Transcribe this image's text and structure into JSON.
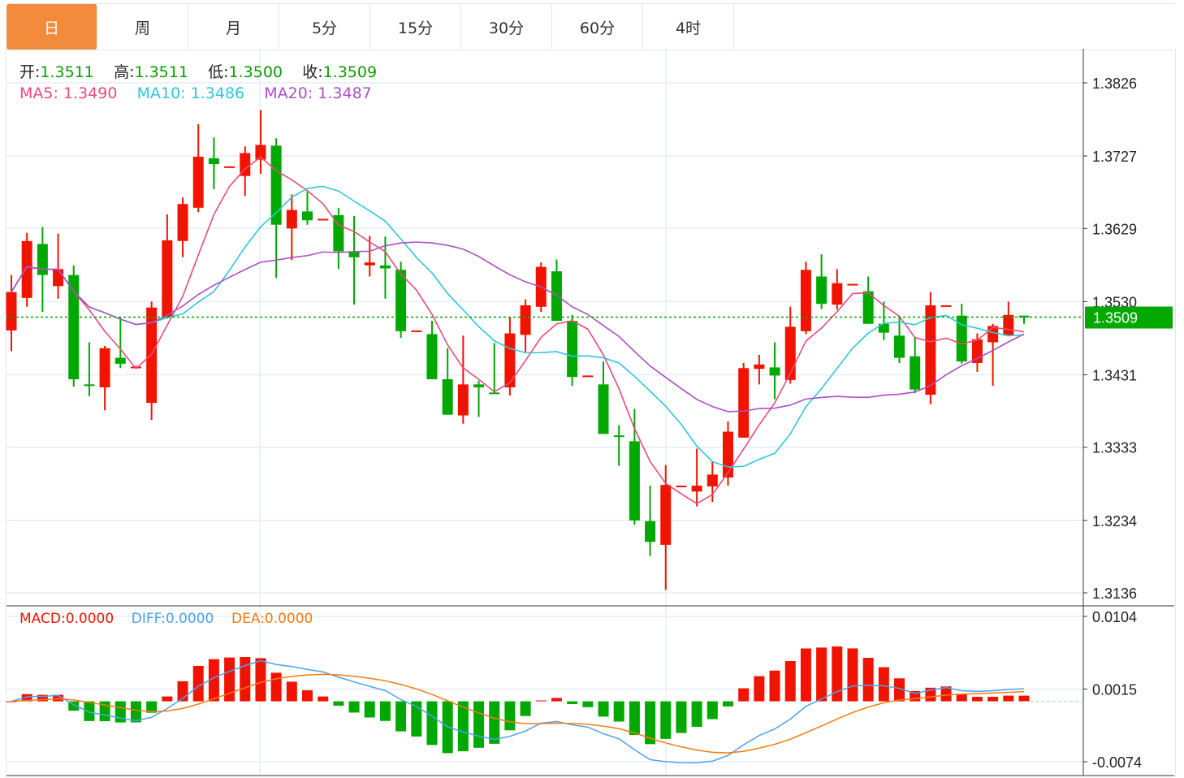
{
  "tabs": [
    "日",
    "周",
    "月",
    "5分",
    "15分",
    "30分",
    "60分",
    "4时"
  ],
  "active_tab": 0,
  "ohlc_legend": {
    "open_label": "开:",
    "open": "1.3511",
    "high_label": "高:",
    "high": "1.3511",
    "low_label": "低:",
    "low": "1.3500",
    "close_label": "收:",
    "close": "1.3509"
  },
  "ma_legend": {
    "ma5_label": "MA5:",
    "ma5": "1.3490",
    "ma10_label": "MA10:",
    "ma10": "1.3486",
    "ma20_label": "MA20:",
    "ma20": "1.3487"
  },
  "macd_legend": {
    "macd_label": "MACD:",
    "macd": "0.0000",
    "diff_label": "DIFF:",
    "diff": "0.0000",
    "dea_label": "DEA:",
    "dea": "0.0000"
  },
  "colors": {
    "up": "#f01400",
    "down": "#00a800",
    "ma5": "#ec4a7c",
    "ma10": "#2ec7dc",
    "ma20": "#ab4fc4",
    "diff": "#4aa3f0",
    "dea": "#f57c10",
    "accent": "#f28c3c",
    "last": "#00a800"
  },
  "chart_data": [
    {
      "type": "candlestick",
      "title": "",
      "price_ticks": [
        "1.3826",
        "1.3727",
        "1.3629",
        "1.3530",
        "1.3431",
        "1.3333",
        "1.3234",
        "1.3136"
      ],
      "ylim": [
        1.3136,
        1.3826
      ],
      "last_price": "1.3509",
      "grid": true,
      "candles_ohlc": [
        [
          1.3491,
          1.3566,
          1.3463,
          1.3543
        ],
        [
          1.3535,
          1.3623,
          1.3523,
          1.3612
        ],
        [
          1.3608,
          1.3631,
          1.3516,
          1.3566
        ],
        [
          1.3551,
          1.3622,
          1.3534,
          1.3574
        ],
        [
          1.3566,
          1.3579,
          1.3415,
          1.3425
        ],
        [
          1.3418,
          1.3475,
          1.3402,
          1.3417
        ],
        [
          1.3414,
          1.347,
          1.3383,
          1.3467
        ],
        [
          1.3454,
          1.3509,
          1.344,
          1.3446
        ],
        [
          1.3441,
          1.3443,
          1.344,
          1.3442
        ],
        [
          1.3393,
          1.353,
          1.337,
          1.3522
        ],
        [
          1.3509,
          1.3648,
          1.3507,
          1.3613
        ],
        [
          1.3612,
          1.3671,
          1.359,
          1.3662
        ],
        [
          1.3657,
          1.377,
          1.3651,
          1.3726
        ],
        [
          1.3724,
          1.3752,
          1.3682,
          1.3716
        ],
        [
          1.3712,
          1.3713,
          1.3712,
          1.3713
        ],
        [
          1.37,
          1.374,
          1.3673,
          1.3731
        ],
        [
          1.3722,
          1.3789,
          1.3703,
          1.3742
        ],
        [
          1.3741,
          1.3751,
          1.3562,
          1.3634
        ],
        [
          1.3629,
          1.3675,
          1.3586,
          1.3654
        ],
        [
          1.3652,
          1.3679,
          1.3634,
          1.364
        ],
        [
          1.3641,
          1.3642,
          1.3641,
          1.3642
        ],
        [
          1.3647,
          1.3657,
          1.3574,
          1.3598
        ],
        [
          1.3598,
          1.3646,
          1.3526,
          1.359
        ],
        [
          1.3579,
          1.3619,
          1.3564,
          1.3583
        ],
        [
          1.3579,
          1.3618,
          1.3534,
          1.3575
        ],
        [
          1.3573,
          1.3584,
          1.3481,
          1.349
        ],
        [
          1.349,
          1.3491,
          1.349,
          1.3491
        ],
        [
          1.3486,
          1.3504,
          1.3425,
          1.3425
        ],
        [
          1.3425,
          1.3467,
          1.3377,
          1.3377
        ],
        [
          1.3376,
          1.3484,
          1.3365,
          1.3418
        ],
        [
          1.3418,
          1.3423,
          1.3374,
          1.3414
        ],
        [
          1.3407,
          1.3474,
          1.3406,
          1.3406
        ],
        [
          1.3414,
          1.3509,
          1.3403,
          1.3487
        ],
        [
          1.3485,
          1.3533,
          1.3462,
          1.3525
        ],
        [
          1.3523,
          1.3583,
          1.3516,
          1.3577
        ],
        [
          1.3571,
          1.3587,
          1.3504,
          1.3504
        ],
        [
          1.3504,
          1.3512,
          1.3416,
          1.3428
        ],
        [
          1.3428,
          1.343,
          1.3428,
          1.343
        ],
        [
          1.3418,
          1.3449,
          1.3351,
          1.3351
        ],
        [
          1.3349,
          1.3363,
          1.3308,
          1.3348
        ],
        [
          1.3341,
          1.3385,
          1.3228,
          1.3234
        ],
        [
          1.3233,
          1.3281,
          1.3186,
          1.3205
        ],
        [
          1.3201,
          1.3309,
          1.314,
          1.3282
        ],
        [
          1.328,
          1.3281,
          1.328,
          1.3281
        ],
        [
          1.3273,
          1.3331,
          1.3253,
          1.3281
        ],
        [
          1.328,
          1.3314,
          1.3259,
          1.3296
        ],
        [
          1.3292,
          1.3368,
          1.3281,
          1.3354
        ],
        [
          1.3346,
          1.3447,
          1.3346,
          1.344
        ],
        [
          1.3439,
          1.3458,
          1.3418,
          1.3445
        ],
        [
          1.3441,
          1.3475,
          1.3398,
          1.343
        ],
        [
          1.3424,
          1.3523,
          1.3419,
          1.3496
        ],
        [
          1.349,
          1.3584,
          1.3486,
          1.3573
        ],
        [
          1.3564,
          1.3594,
          1.352,
          1.3527
        ],
        [
          1.3526,
          1.3574,
          1.3519,
          1.3555
        ],
        [
          1.3553,
          1.3554,
          1.3553,
          1.3554
        ],
        [
          1.3544,
          1.3564,
          1.35,
          1.35
        ],
        [
          1.35,
          1.353,
          1.3478,
          1.3488
        ],
        [
          1.3484,
          1.3508,
          1.3447,
          1.3454
        ],
        [
          1.3456,
          1.3482,
          1.3406,
          1.3411
        ],
        [
          1.3404,
          1.3543,
          1.3391,
          1.3525
        ],
        [
          1.3524,
          1.3525,
          1.3524,
          1.3525
        ],
        [
          1.3511,
          1.3527,
          1.3446,
          1.3449
        ],
        [
          1.3447,
          1.3487,
          1.3435,
          1.3479
        ],
        [
          1.3475,
          1.35,
          1.3416,
          1.3497
        ],
        [
          1.3484,
          1.353,
          1.3483,
          1.3512
        ],
        [
          1.3511,
          1.3511,
          1.35,
          1.3509
        ]
      ],
      "moving_averages": [
        5,
        10,
        20
      ]
    },
    {
      "type": "bar+line",
      "title": "MACD",
      "ticks": [
        "0.0104",
        "0.0015",
        "-0.0074"
      ],
      "ylim": [
        -0.0074,
        0.0104
      ],
      "params": [
        12,
        26,
        9
      ]
    }
  ]
}
